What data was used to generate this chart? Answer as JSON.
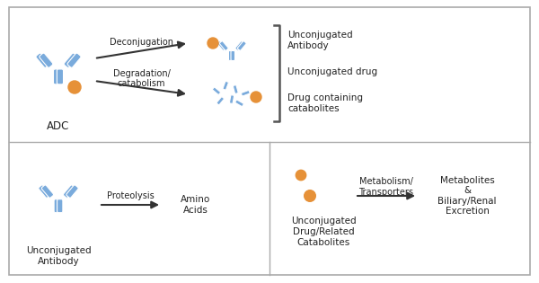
{
  "bg_color": "#ffffff",
  "antibody_color": "#7aabdc",
  "drug_color": "#e69138",
  "arrow_color": "#333333",
  "text_color": "#222222",
  "border_color": "#aaaaaa",
  "sections": {
    "adc_label": "ADC",
    "arrow1_label": "Deconjugation",
    "arrow2_label": "Degradation/\ncatabolism",
    "top_outcomes": [
      "Unconjugated\nAntibody",
      "Unconjugated drug",
      "Drug containing\ncatabolites"
    ],
    "bot_left_label": "Unconjugated\nAntibody",
    "bot_left_arrow_label": "Proteolysis",
    "bot_left_result": "Amino\nAcids",
    "bot_mid_label": "Unconjugated\nDrug/Related\nCatabolites",
    "bot_mid_arrow_label": "Metabolism/\nTransporters",
    "bot_right_label": "Metabolites\n&\nBiliary/Renal\nExcretion"
  }
}
